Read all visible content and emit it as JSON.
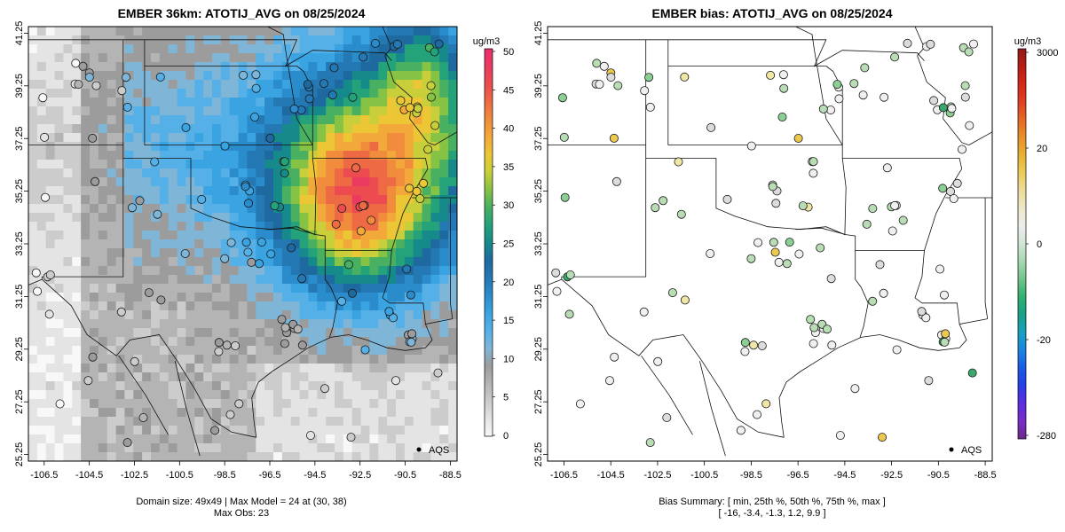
{
  "left_panel": {
    "title": "EMBER 36km: ATOTIJ_AVG on 08/25/2024",
    "colorbar": {
      "unit": "ug/m3",
      "ticks": [
        "50",
        "45",
        "40",
        "35",
        "30",
        "25",
        "20",
        "15",
        "10",
        "5",
        "0"
      ],
      "colors": [
        "#f8f8f8",
        "#e4e4e4",
        "#cccccc",
        "#b4b4b4",
        "#9c9c9c",
        "#7fb6d8",
        "#56b0e8",
        "#3aa3e2",
        "#2b8ccc",
        "#2478b4",
        "#1e6aa0",
        "#168a8a",
        "#24a27a",
        "#48b060",
        "#86c244",
        "#c8cf3a",
        "#ecc634",
        "#f3a93a",
        "#f08c3c",
        "#ee6a44",
        "#ec4c50",
        "#ea3a60",
        "#e8306c"
      ]
    },
    "legend_label": "AQS",
    "footer": [
      "Domain size: 49x49 | Max Model = 24 at (30, 38)",
      "Max Obs: 23"
    ]
  },
  "right_panel": {
    "title": "EMBER bias: ATOTIJ_AVG on 08/25/2024",
    "colorbar": {
      "unit": "ug/m3",
      "ticks": [
        "3000",
        "20",
        "0",
        "-20",
        "-280"
      ],
      "colors": [
        "#6b2a8a",
        "#7a2ec8",
        "#5a2ee0",
        "#2a3ee8",
        "#1a5ae8",
        "#1a86e0",
        "#18a0c0",
        "#18a088",
        "#30b070",
        "#70c48a",
        "#a6d8b0",
        "#d0e6d4",
        "#ececec",
        "#ece8c8",
        "#ecdc98",
        "#eccc58",
        "#e8b030",
        "#e89028",
        "#e46a24",
        "#e04020",
        "#d42818",
        "#b81e16",
        "#901818"
      ]
    },
    "legend_label": "AQS",
    "footer": [
      "Bias Summary: [ min, 25th %, 50th %, 75th %, max ]",
      "[ -16,   -3.4,   -1.3,   1.2,   9.9 ]"
    ]
  },
  "axes": {
    "lon_ticks": [
      "-106.5",
      "-104.5",
      "-102.5",
      "-100.5",
      "-98.5",
      "-96.5",
      "-94.5",
      "-92.5",
      "-90.5",
      "-88.5"
    ],
    "lat_ticks": [
      "41.25",
      "39.25",
      "37.25",
      "35.25",
      "33.25",
      "31.25",
      "29.25",
      "27.25",
      "25.25"
    ],
    "lon_range": [
      -107.2,
      -88.2
    ],
    "lat_range": [
      25.0,
      41.5
    ]
  },
  "colors": {
    "frame": "#000000",
    "boundary": "#111111",
    "marker_edge": "#1a1a1a"
  }
}
